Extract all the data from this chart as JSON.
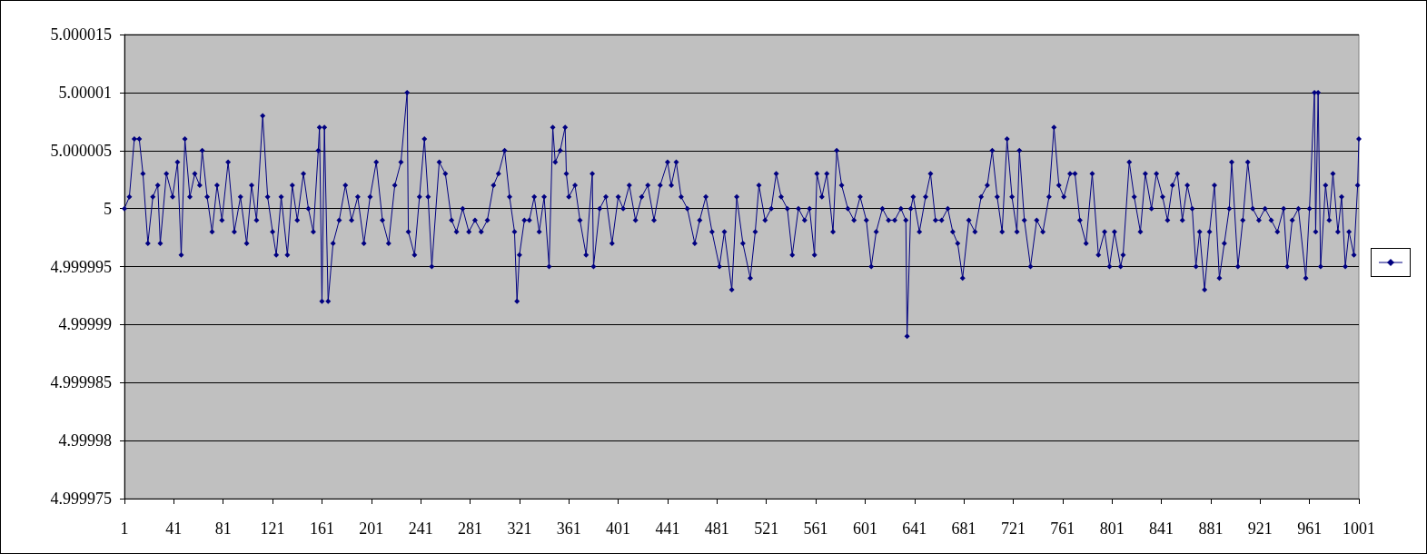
{
  "chart_data": {
    "type": "line",
    "x": [
      1,
      5,
      9,
      13,
      16,
      20,
      24,
      28,
      30,
      35,
      40,
      44,
      47,
      50,
      54,
      58,
      62,
      64,
      68,
      72,
      76,
      80,
      85,
      90,
      95,
      100,
      104,
      108,
      113,
      117,
      121,
      124,
      128,
      133,
      137,
      141,
      146,
      150,
      154,
      158,
      159,
      161,
      163,
      166,
      170,
      175,
      180,
      185,
      190,
      195,
      200,
      205,
      210,
      215,
      220,
      225,
      230,
      231,
      236,
      240,
      244,
      247,
      250,
      256,
      261,
      266,
      270,
      275,
      280,
      285,
      290,
      295,
      300,
      304,
      309,
      313,
      317,
      319,
      321,
      325,
      329,
      333,
      337,
      341,
      345,
      348,
      350,
      354,
      358,
      359,
      361,
      366,
      370,
      375,
      380,
      381,
      386,
      391,
      396,
      401,
      405,
      410,
      415,
      420,
      425,
      430,
      435,
      441,
      444,
      448,
      452,
      457,
      463,
      467,
      472,
      477,
      483,
      487,
      493,
      497,
      502,
      508,
      512,
      515,
      520,
      525,
      529,
      533,
      538,
      542,
      547,
      552,
      556,
      560,
      562,
      566,
      570,
      575,
      578,
      582,
      587,
      592,
      597,
      602,
      606,
      610,
      615,
      620,
      625,
      630,
      634,
      635,
      638,
      640,
      645,
      650,
      654,
      658,
      663,
      668,
      672,
      676,
      680,
      685,
      690,
      695,
      700,
      704,
      708,
      712,
      716,
      720,
      724,
      726,
      730,
      735,
      740,
      745,
      750,
      754,
      758,
      762,
      767,
      771,
      775,
      780,
      785,
      790,
      795,
      799,
      803,
      808,
      810,
      815,
      819,
      824,
      828,
      833,
      837,
      842,
      846,
      850,
      854,
      858,
      862,
      866,
      869,
      872,
      876,
      880,
      884,
      888,
      892,
      896,
      898,
      903,
      907,
      911,
      915,
      920,
      925,
      930,
      935,
      940,
      943,
      947,
      952,
      958,
      961,
      965,
      966,
      968,
      970,
      974,
      977,
      980,
      984,
      987,
      990,
      993,
      997,
      1000,
      1001
    ],
    "series": [
      {
        "color": "#000080",
        "values": [
          5,
          5.000001,
          5.000006,
          5.000006,
          5.000003,
          4.999997,
          5.000001,
          5.000002,
          4.999997,
          5.000003,
          5.000001,
          5.000004,
          4.999996,
          5.000006,
          5.000001,
          5.000003,
          5.000002,
          5.000005,
          5.000001,
          4.999998,
          5.000002,
          4.999999,
          5.000004,
          4.999998,
          5.000001,
          4.999997,
          5.000002,
          4.999999,
          5.000008,
          5.000001,
          4.999998,
          4.999996,
          5.000001,
          4.999996,
          5.000002,
          4.999999,
          5.000003,
          5,
          4.999998,
          5.000005,
          5.000007,
          4.999992,
          5.000007,
          4.999992,
          4.999997,
          4.999999,
          5.000002,
          4.999999,
          5.000001,
          4.999997,
          5.000001,
          5.000004,
          4.999999,
          4.999997,
          5.000002,
          5.000004,
          5.00001,
          4.999998,
          4.999996,
          5.000001,
          5.000006,
          5.000001,
          4.999995,
          5.000004,
          5.000003,
          4.999999,
          4.999998,
          5,
          4.999998,
          4.999999,
          4.999998,
          4.999999,
          5.000002,
          5.000003,
          5.000005,
          5.000001,
          4.999998,
          4.999992,
          4.999996,
          4.999999,
          4.999999,
          5.000001,
          4.999998,
          5.000001,
          4.999995,
          5.000007,
          5.000004,
          5.000005,
          5.000007,
          5.000003,
          5.000001,
          5.000002,
          4.999999,
          4.999996,
          5.000003,
          4.999995,
          5,
          5.000001,
          4.999997,
          5.000001,
          5,
          5.000002,
          4.999999,
          5.000001,
          5.000002,
          4.999999,
          5.000002,
          5.000004,
          5.000002,
          5.000004,
          5.000001,
          5,
          4.999997,
          4.999999,
          5.000001,
          4.999998,
          4.999995,
          4.999998,
          4.999993,
          5.000001,
          4.999997,
          4.999994,
          4.999998,
          5.000002,
          4.999999,
          5,
          5.000003,
          5.000001,
          5,
          4.999996,
          5,
          4.999999,
          5,
          4.999996,
          5.000003,
          5.000001,
          5.000003,
          4.999998,
          5.000005,
          5.000002,
          5,
          4.999999,
          5.000001,
          4.999999,
          4.999995,
          4.999998,
          5,
          4.999999,
          4.999999,
          5,
          4.999999,
          4.999989,
          5,
          5.000001,
          4.999998,
          5.000001,
          5.000003,
          4.999999,
          4.999999,
          5,
          4.999998,
          4.999997,
          4.999994,
          4.999999,
          4.999998,
          5.000001,
          5.000002,
          5.000005,
          5.000001,
          4.999998,
          5.000006,
          5.000001,
          4.999998,
          5.000005,
          4.999999,
          4.999995,
          4.999999,
          4.999998,
          5.000001,
          5.000007,
          5.000002,
          5.000001,
          5.000003,
          5.000003,
          4.999999,
          4.999997,
          5.000003,
          4.999996,
          4.999998,
          4.999995,
          4.999998,
          4.999995,
          4.999996,
          5.000004,
          5.000001,
          4.999998,
          5.000003,
          5,
          5.000003,
          5.000001,
          4.999999,
          5.000002,
          5.000003,
          4.999999,
          5.000002,
          5,
          4.999995,
          4.999998,
          4.999993,
          4.999998,
          5.000002,
          4.999994,
          4.999997,
          5,
          5.000004,
          4.999995,
          4.999999,
          5.000004,
          5,
          4.999999,
          5,
          4.999999,
          4.999998,
          5,
          4.999995,
          4.999999,
          5,
          4.999994,
          5,
          5.00001,
          4.999998,
          5.00001,
          4.999995,
          5.000002,
          4.999999,
          5.000003,
          4.999998,
          5.000001,
          4.999995,
          4.999998,
          4.999996,
          5.000002,
          5.000006
        ]
      }
    ],
    "xlim": [
      1,
      1001
    ],
    "xticks": [
      1,
      41,
      81,
      121,
      161,
      201,
      241,
      281,
      321,
      361,
      401,
      441,
      481,
      521,
      561,
      601,
      641,
      681,
      721,
      761,
      801,
      841,
      881,
      921,
      961,
      1001
    ],
    "ylim": [
      4.999975,
      5.000015
    ],
    "yticks": [
      4.999975,
      4.99998,
      4.999985,
      4.99999,
      4.999995,
      5,
      5.000005,
      5.00001,
      5.000015
    ],
    "grid": "y",
    "marker": "diamond",
    "line_style": "solid"
  }
}
